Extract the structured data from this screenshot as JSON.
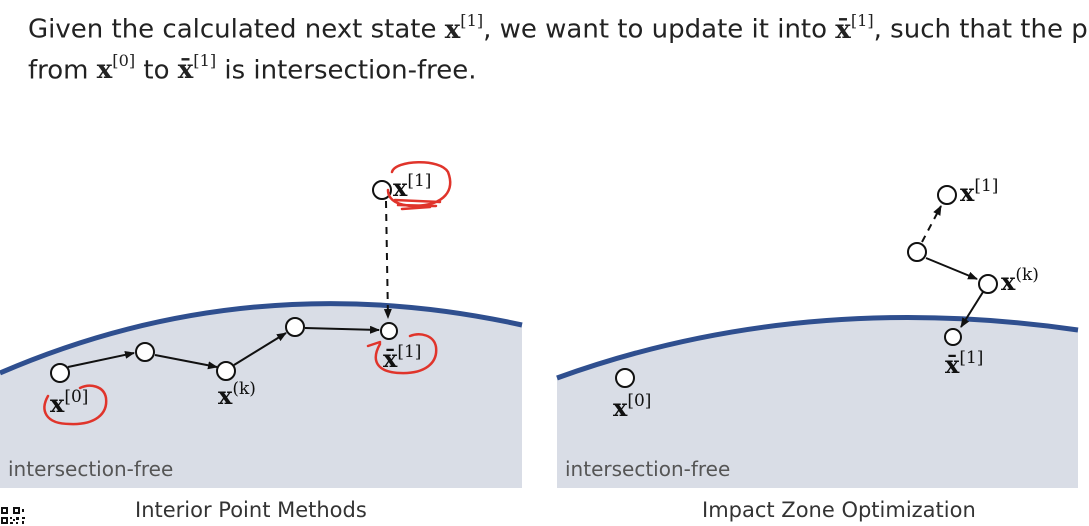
{
  "heading": {
    "line1_a": "Given the calculated next state ",
    "line1_b": ", we want to update it into ",
    "line1_c": ", such that the path",
    "line2_a": "from ",
    "line2_b": " to ",
    "line2_c": " is intersection-free."
  },
  "math": {
    "x_base": "x",
    "xbar_base": "x̄",
    "sup_0": "[0]",
    "sup_1": "[1]",
    "sup_k": "(k)"
  },
  "left_panel": {
    "title": "Interior Point Methods",
    "region_label": "intersection-free"
  },
  "right_panel": {
    "title": "Impact Zone Optimization",
    "region_label": "intersection-free"
  },
  "colors": {
    "surface_fill": "#d9dde6",
    "boundary": "#2f4f8f",
    "annotation": "#e0342b",
    "arrow": "#111111"
  }
}
